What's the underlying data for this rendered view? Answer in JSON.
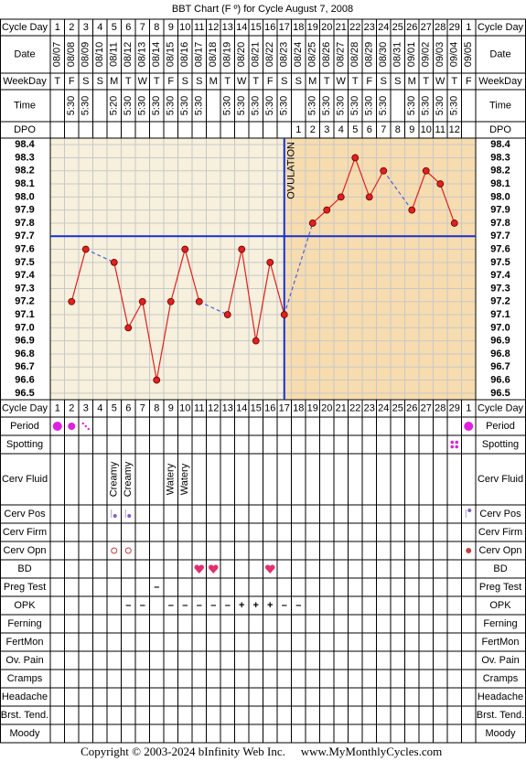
{
  "chart_data": {
    "type": "line",
    "title": "BBT Chart (F º) for Cycle August 7, 2008",
    "row_labels": {
      "cycle_day": "Cycle Day",
      "date": "Date",
      "weekday": "WeekDay",
      "time": "Time",
      "dpo": "DPO"
    },
    "categories": [
      1,
      2,
      3,
      4,
      5,
      6,
      7,
      8,
      9,
      10,
      11,
      12,
      13,
      14,
      15,
      16,
      17,
      18,
      19,
      20,
      21,
      22,
      23,
      24,
      25,
      26,
      27,
      28,
      29,
      1
    ],
    "dates": [
      "08/07",
      "08/08",
      "08/09",
      "08/10",
      "08/11",
      "08/12",
      "08/13",
      "08/14",
      "08/15",
      "08/16",
      "08/17",
      "08/18",
      "08/19",
      "08/20",
      "08/21",
      "08/22",
      "08/23",
      "08/24",
      "08/25",
      "08/26",
      "08/27",
      "08/28",
      "08/29",
      "08/30",
      "08/31",
      "09/01",
      "09/02",
      "09/03",
      "09/04",
      "09/05"
    ],
    "weekdays": [
      "T",
      "F",
      "S",
      "S",
      "M",
      "T",
      "W",
      "T",
      "F",
      "S",
      "S",
      "M",
      "T",
      "W",
      "T",
      "F",
      "S",
      "S",
      "M",
      "T",
      "W",
      "T",
      "F",
      "S",
      "S",
      "M",
      "T",
      "W",
      "T",
      "F"
    ],
    "times": [
      null,
      "5:30",
      "5:30",
      null,
      "5:20",
      "5:30",
      "5:30",
      "5:30",
      "5:30",
      "5:30",
      "5:30",
      null,
      "5:30",
      "5:30",
      "5:30",
      "5:30",
      "5:30",
      null,
      "5:30",
      "5:30",
      "5:30",
      "5:30",
      "5:30",
      "5:30",
      null,
      "5:30",
      "5:30",
      "5:30",
      "5:30",
      null
    ],
    "dpo": [
      null,
      null,
      null,
      null,
      null,
      null,
      null,
      null,
      null,
      null,
      null,
      null,
      null,
      null,
      null,
      null,
      null,
      1,
      2,
      3,
      4,
      5,
      6,
      7,
      8,
      9,
      10,
      11,
      12,
      null
    ],
    "values": [
      null,
      97.2,
      97.6,
      null,
      97.5,
      97.0,
      97.2,
      96.6,
      97.2,
      97.6,
      97.2,
      null,
      97.1,
      97.6,
      96.9,
      97.5,
      97.1,
      null,
      97.8,
      97.9,
      98.0,
      98.3,
      98.0,
      98.2,
      null,
      97.9,
      98.2,
      98.1,
      97.8,
      null
    ],
    "color": "#e02020",
    "ylim": [
      96.45,
      98.45
    ],
    "yticks": [
      98.4,
      98.3,
      98.2,
      98.1,
      {
        "value": 98.0,
        "label": "98.0"
      },
      97.9,
      97.8,
      97.7,
      97.6,
      97.5,
      97.4,
      97.3,
      97.2,
      97.1,
      {
        "value": 97.0,
        "label": "97.0"
      },
      96.9,
      96.8,
      96.7,
      96.6,
      96.5
    ],
    "grid": true,
    "coverline": 97.7,
    "ovulation_cycle_day": 17,
    "ovulation_label": "OVULATION"
  },
  "tracking": {
    "rows": [
      {
        "label": "Period"
      },
      {
        "label": "Spotting"
      },
      {
        "label": "Cerv Fluid",
        "entries": [
          null,
          null,
          null,
          null,
          "Creamy",
          "Creamy",
          null,
          null,
          "Watery",
          "Watery",
          null,
          null,
          null,
          null,
          null,
          null,
          null,
          null,
          null,
          null,
          null,
          null,
          null,
          null,
          null,
          null,
          null,
          null,
          null,
          null
        ]
      },
      {
        "label": "Cerv Pos"
      },
      {
        "label": "Cerv Firm"
      },
      {
        "label": "Cerv Opn"
      },
      {
        "label": "BD"
      },
      {
        "label": "Preg Test",
        "entries": [
          null,
          null,
          null,
          null,
          null,
          null,
          null,
          "–",
          null,
          null,
          null,
          null,
          null,
          null,
          null,
          null,
          null,
          null,
          null,
          null,
          null,
          null,
          null,
          null,
          null,
          null,
          null,
          null,
          null,
          null
        ]
      },
      {
        "label": "OPK",
        "entries": [
          null,
          null,
          null,
          null,
          null,
          "–",
          "–",
          null,
          "–",
          "–",
          "–",
          "–",
          "–",
          "+",
          "+",
          "+",
          "–",
          "–",
          null,
          null,
          null,
          null,
          null,
          null,
          null,
          null,
          null,
          null,
          null,
          null
        ]
      },
      {
        "label": "Ferning"
      },
      {
        "label": "FertMon"
      },
      {
        "label": "Ov. Pain"
      },
      {
        "label": "Cramps"
      },
      {
        "label": "Headache"
      },
      {
        "label": "Brst. Tend."
      },
      {
        "label": "Moody"
      }
    ]
  },
  "footer": {
    "copyright": "Copyright © 2003-2024 bInfinity Web Inc.",
    "site": "www.MyMonthlyCycles.com"
  }
}
